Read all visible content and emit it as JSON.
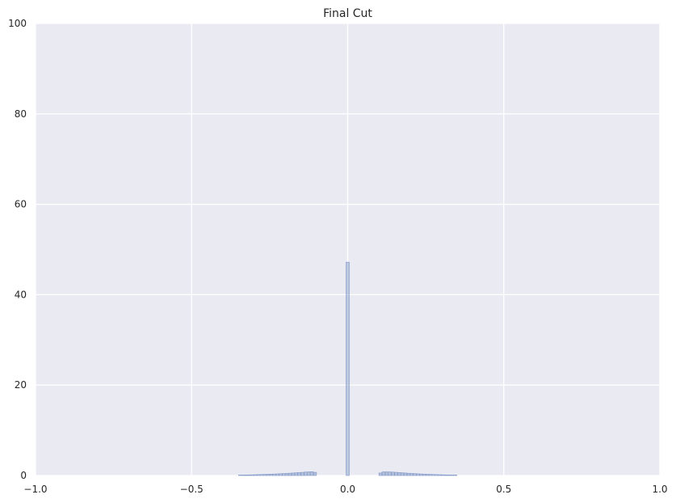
{
  "chart_data": {
    "type": "bar",
    "title": "Final Cut",
    "xlabel": "",
    "ylabel": "",
    "xlim": [
      -1.0,
      1.0
    ],
    "ylim": [
      0,
      100
    ],
    "x_ticks": [
      -1.0,
      -0.5,
      0.0,
      0.5,
      1.0
    ],
    "x_tick_labels": [
      "−1.0",
      "−0.5",
      "0.0",
      "0.5",
      "1.0"
    ],
    "y_ticks": [
      0,
      20,
      40,
      60,
      80,
      100
    ],
    "y_tick_labels": [
      "0",
      "20",
      "40",
      "60",
      "80",
      "100"
    ],
    "grid": true,
    "background": "#EAEAF2",
    "grid_color": "#FFFFFF",
    "bar_color": "#4C72B0",
    "bar_alpha": 0.35,
    "bar_edge_color": "#7F96C8",
    "bins": [
      {
        "x0": -0.35,
        "x1": -0.34,
        "value": 0.1
      },
      {
        "x0": -0.34,
        "x1": -0.33,
        "value": 0.1
      },
      {
        "x0": -0.33,
        "x1": -0.32,
        "value": 0.12
      },
      {
        "x0": -0.32,
        "x1": -0.31,
        "value": 0.13
      },
      {
        "x0": -0.31,
        "x1": -0.3,
        "value": 0.15
      },
      {
        "x0": -0.3,
        "x1": -0.29,
        "value": 0.17
      },
      {
        "x0": -0.29,
        "x1": -0.28,
        "value": 0.2
      },
      {
        "x0": -0.28,
        "x1": -0.27,
        "value": 0.22
      },
      {
        "x0": -0.27,
        "x1": -0.26,
        "value": 0.25
      },
      {
        "x0": -0.26,
        "x1": -0.25,
        "value": 0.28
      },
      {
        "x0": -0.25,
        "x1": -0.24,
        "value": 0.3
      },
      {
        "x0": -0.24,
        "x1": -0.23,
        "value": 0.33
      },
      {
        "x0": -0.23,
        "x1": -0.22,
        "value": 0.36
      },
      {
        "x0": -0.22,
        "x1": -0.21,
        "value": 0.4
      },
      {
        "x0": -0.21,
        "x1": -0.2,
        "value": 0.43
      },
      {
        "x0": -0.2,
        "x1": -0.19,
        "value": 0.47
      },
      {
        "x0": -0.19,
        "x1": -0.18,
        "value": 0.51
      },
      {
        "x0": -0.18,
        "x1": -0.17,
        "value": 0.55
      },
      {
        "x0": -0.17,
        "x1": -0.16,
        "value": 0.6
      },
      {
        "x0": -0.16,
        "x1": -0.15,
        "value": 0.64
      },
      {
        "x0": -0.15,
        "x1": -0.14,
        "value": 0.7
      },
      {
        "x0": -0.14,
        "x1": -0.13,
        "value": 0.75
      },
      {
        "x0": -0.13,
        "x1": -0.12,
        "value": 0.8
      },
      {
        "x0": -0.12,
        "x1": -0.11,
        "value": 0.82
      },
      {
        "x0": -0.11,
        "x1": -0.1,
        "value": 0.7
      },
      {
        "x0": -0.005,
        "x1": 0.005,
        "value": 47.2
      },
      {
        "x0": 0.1,
        "x1": 0.11,
        "value": 0.55
      },
      {
        "x0": 0.11,
        "x1": 0.12,
        "value": 0.8
      },
      {
        "x0": 0.12,
        "x1": 0.13,
        "value": 0.8
      },
      {
        "x0": 0.13,
        "x1": 0.14,
        "value": 0.78
      },
      {
        "x0": 0.14,
        "x1": 0.15,
        "value": 0.75
      },
      {
        "x0": 0.15,
        "x1": 0.16,
        "value": 0.7
      },
      {
        "x0": 0.16,
        "x1": 0.17,
        "value": 0.65
      },
      {
        "x0": 0.17,
        "x1": 0.18,
        "value": 0.6
      },
      {
        "x0": 0.18,
        "x1": 0.19,
        "value": 0.55
      },
      {
        "x0": 0.19,
        "x1": 0.2,
        "value": 0.5
      },
      {
        "x0": 0.2,
        "x1": 0.21,
        "value": 0.46
      },
      {
        "x0": 0.21,
        "x1": 0.22,
        "value": 0.42
      },
      {
        "x0": 0.22,
        "x1": 0.23,
        "value": 0.38
      },
      {
        "x0": 0.23,
        "x1": 0.24,
        "value": 0.34
      },
      {
        "x0": 0.24,
        "x1": 0.25,
        "value": 0.31
      },
      {
        "x0": 0.25,
        "x1": 0.26,
        "value": 0.28
      },
      {
        "x0": 0.26,
        "x1": 0.27,
        "value": 0.25
      },
      {
        "x0": 0.27,
        "x1": 0.28,
        "value": 0.22
      },
      {
        "x0": 0.28,
        "x1": 0.29,
        "value": 0.2
      },
      {
        "x0": 0.29,
        "x1": 0.3,
        "value": 0.17
      },
      {
        "x0": 0.3,
        "x1": 0.31,
        "value": 0.15
      },
      {
        "x0": 0.31,
        "x1": 0.32,
        "value": 0.13
      },
      {
        "x0": 0.32,
        "x1": 0.33,
        "value": 0.12
      },
      {
        "x0": 0.33,
        "x1": 0.34,
        "value": 0.1
      },
      {
        "x0": 0.34,
        "x1": 0.35,
        "value": 0.1
      }
    ]
  }
}
